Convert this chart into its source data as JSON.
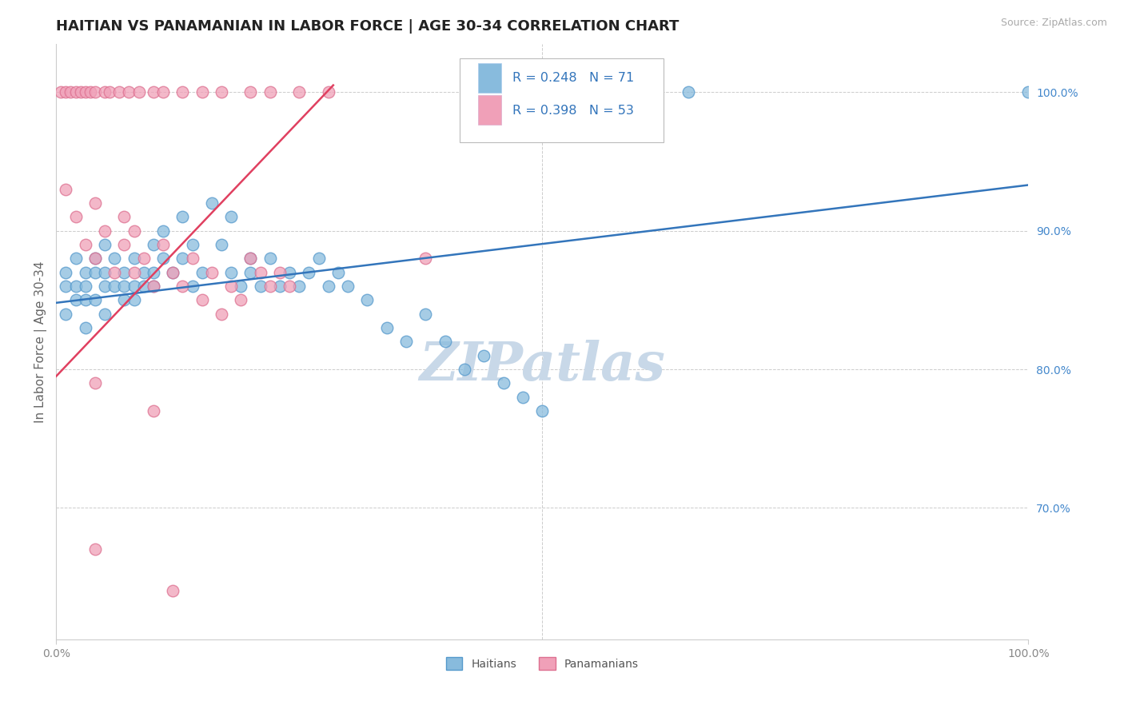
{
  "title": "HAITIAN VS PANAMANIAN IN LABOR FORCE | AGE 30-34 CORRELATION CHART",
  "source": "Source: ZipAtlas.com",
  "ylabel": "In Labor Force | Age 30-34",
  "xlim": [
    0.0,
    1.0
  ],
  "ylim": [
    0.605,
    1.035
  ],
  "y_tick_labels_right": [
    "100.0%",
    "90.0%",
    "80.0%",
    "70.0%"
  ],
  "y_tick_positions_right": [
    1.0,
    0.9,
    0.8,
    0.7
  ],
  "blue_color": "#88bbdd",
  "pink_color": "#f0a0b8",
  "blue_line_color": "#3375bb",
  "pink_line_color": "#e04060",
  "blue_dot_edge": "#5599cc",
  "pink_dot_edge": "#dd7090",
  "R_blue": 0.248,
  "N_blue": 71,
  "R_pink": 0.398,
  "N_pink": 53,
  "watermark_text": "ZIPatlas",
  "watermark_color": "#c8d8e8",
  "grid_color": "#cccccc",
  "title_fontsize": 13,
  "axis_label_fontsize": 11,
  "tick_fontsize": 10,
  "right_tick_color": "#4488cc",
  "blue_line_start_y": 0.848,
  "blue_line_end_y": 0.933,
  "pink_line_start_x": 0.0,
  "pink_line_start_y": 0.795,
  "pink_line_end_x": 0.285,
  "pink_line_end_y": 1.005
}
